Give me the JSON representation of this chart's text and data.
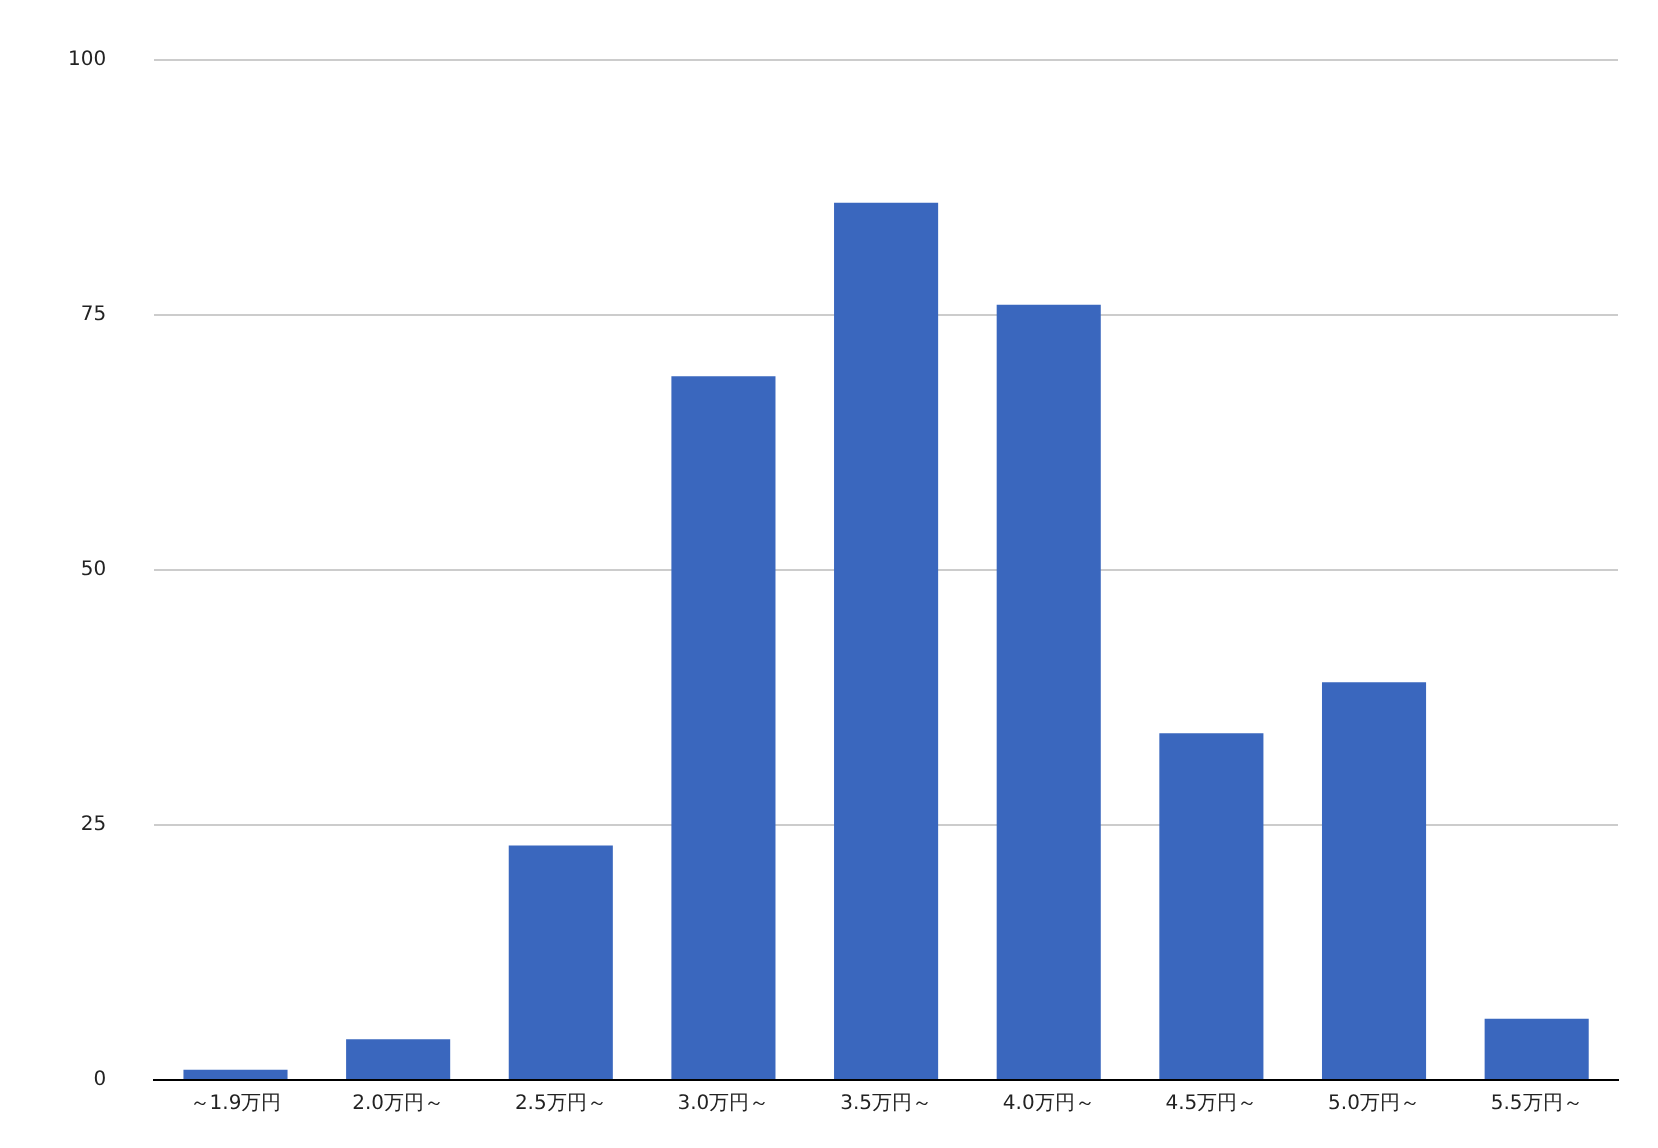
{
  "chart_data": {
    "type": "bar",
    "categories": [
      "～1.9万円",
      "2.0万円～",
      "2.5万円～",
      "3.0万円～",
      "3.5万円～",
      "4.0万円～",
      "4.5万円～",
      "5.0万円～",
      "5.5万円～"
    ],
    "values": [
      1,
      4,
      23,
      69,
      86,
      76,
      34,
      39,
      6
    ],
    "color": "#3a67be",
    "ylim": [
      0,
      100
    ],
    "yticks": [
      0,
      25,
      50,
      75,
      100
    ],
    "grid": "y",
    "legend": false
  }
}
